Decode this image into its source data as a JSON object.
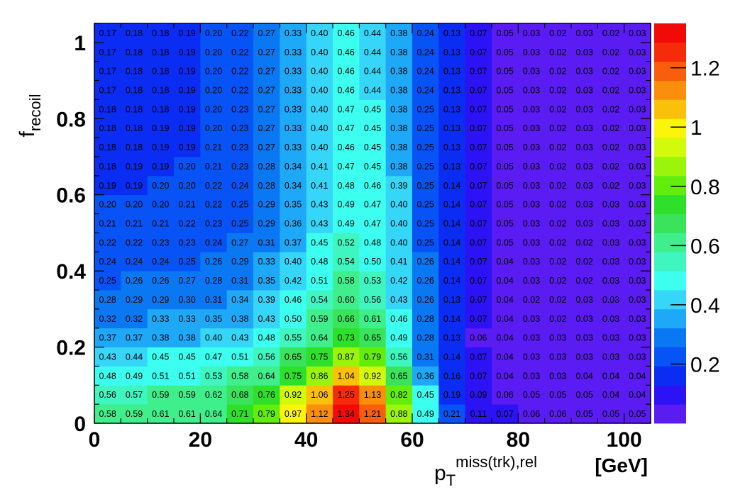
{
  "chart_data": {
    "type": "heatmap",
    "x_axis": {
      "label_main": "p",
      "label_sub": "T",
      "label_sup": "miss(trk),rel",
      "unit": "[GeV]",
      "range": [
        0,
        105
      ],
      "ticks": [
        "0",
        "20",
        "40",
        "60",
        "80",
        "100"
      ],
      "tick_values": [
        0,
        20,
        40,
        60,
        80,
        100
      ],
      "bin_edges": [
        0,
        5,
        10,
        15,
        20,
        25,
        30,
        35,
        40,
        45,
        50,
        55,
        60,
        65,
        70,
        75,
        80,
        85,
        90,
        95,
        100,
        105
      ]
    },
    "y_axis": {
      "label_main": "f",
      "label_sub": "recoil",
      "range": [
        0,
        1.05
      ],
      "ticks": [
        "0",
        "0.2",
        "0.4",
        "0.6",
        "0.8",
        "1"
      ],
      "tick_values": [
        0,
        0.2,
        0.4,
        0.6,
        0.8,
        1.0
      ],
      "bin_edges": [
        0,
        0.05,
        0.1,
        0.15,
        0.2,
        0.25,
        0.3,
        0.35,
        0.4,
        0.45,
        0.5,
        0.55,
        0.6,
        0.65,
        0.7,
        0.75,
        0.8,
        0.85,
        0.9,
        0.95,
        1.0,
        1.05
      ]
    },
    "z_axis": {
      "range": [
        0,
        1.35
      ],
      "ticks": [
        "0.2",
        "0.4",
        "0.6",
        "0.8",
        "1",
        "1.2"
      ],
      "tick_values": [
        0.2,
        0.4,
        0.6,
        0.8,
        1.0,
        1.2
      ],
      "palette": [
        "#5a1cf2",
        "#2b13f5",
        "#0a2cf3",
        "#0853f5",
        "#0a78f3",
        "#1ea8f8",
        "#35d6f8",
        "#3cfff0",
        "#3ff6c0",
        "#3fef8c",
        "#39e45c",
        "#2ee02a",
        "#62ee0a",
        "#9af50a",
        "#d3fa0b",
        "#fbf40b",
        "#fbc10a",
        "#fb8e0a",
        "#f95e0a",
        "#f62b09",
        "#f20a09"
      ]
    },
    "values": [
      [
        "0.58",
        "0.59",
        "0.61",
        "0.61",
        "0.64",
        "0.71",
        "0.79",
        "0.97",
        "1.12",
        "1.34",
        "1.21",
        "0.88",
        "0.49",
        "0.21",
        "0.11",
        "0.07",
        "0.06",
        "0.06",
        "0.05",
        "0.05",
        "0.05"
      ],
      [
        "0.56",
        "0.57",
        "0.59",
        "0.59",
        "0.62",
        "0.68",
        "0.76",
        "0.92",
        "1.06",
        "1.25",
        "1.13",
        "0.82",
        "0.45",
        "0.19",
        "0.09",
        "0.06",
        "0.05",
        "0.05",
        "0.05",
        "0.04",
        "0.04"
      ],
      [
        "0.48",
        "0.49",
        "0.51",
        "0.51",
        "0.53",
        "0.58",
        "0.64",
        "0.75",
        "0.86",
        "1.04",
        "0.92",
        "0.65",
        "0.36",
        "0.16",
        "0.07",
        "0.04",
        "0.03",
        "0.03",
        "0.04",
        "0.04",
        "0.04"
      ],
      [
        "0.43",
        "0.44",
        "0.45",
        "0.45",
        "0.47",
        "0.51",
        "0.56",
        "0.65",
        "0.75",
        "0.87",
        "0.79",
        "0.56",
        "0.31",
        "0.14",
        "0.07",
        "0.04",
        "0.03",
        "0.03",
        "0.03",
        "0.03",
        "0.03"
      ],
      [
        "0.37",
        "0.37",
        "0.38",
        "0.38",
        "0.40",
        "0.43",
        "0.48",
        "0.55",
        "0.64",
        "0.73",
        "0.65",
        "0.49",
        "0.28",
        "0.13",
        "0.06",
        "0.04",
        "0.03",
        "0.03",
        "0.03",
        "0.03",
        "0.03"
      ],
      [
        "0.32",
        "0.32",
        "0.33",
        "0.33",
        "0.35",
        "0.38",
        "0.43",
        "0.50",
        "0.59",
        "0.66",
        "0.61",
        "0.46",
        "0.28",
        "0.14",
        "0.07",
        "0.04",
        "0.03",
        "0.02",
        "0.03",
        "0.03",
        "0.03"
      ],
      [
        "0.28",
        "0.29",
        "0.29",
        "0.30",
        "0.31",
        "0.34",
        "0.39",
        "0.46",
        "0.54",
        "0.60",
        "0.56",
        "0.43",
        "0.26",
        "0.13",
        "0.07",
        "0.04",
        "0.02",
        "0.02",
        "0.03",
        "0.03",
        "0.03"
      ],
      [
        "0.25",
        "0.26",
        "0.26",
        "0.27",
        "0.28",
        "0.31",
        "0.35",
        "0.42",
        "0.51",
        "0.58",
        "0.53",
        "0.42",
        "0.26",
        "0.14",
        "0.07",
        "0.04",
        "0.03",
        "0.02",
        "0.02",
        "0.03",
        "0.03"
      ],
      [
        "0.24",
        "0.24",
        "0.24",
        "0.25",
        "0.26",
        "0.29",
        "0.33",
        "0.40",
        "0.48",
        "0.54",
        "0.50",
        "0.41",
        "0.26",
        "0.14",
        "0.07",
        "0.04",
        "0.03",
        "0.02",
        "0.02",
        "0.03",
        "0.03"
      ],
      [
        "0.22",
        "0.22",
        "0.23",
        "0.23",
        "0.24",
        "0.27",
        "0.31",
        "0.37",
        "0.45",
        "0.52",
        "0.48",
        "0.40",
        "0.25",
        "0.14",
        "0.07",
        "0.05",
        "0.03",
        "0.02",
        "0.02",
        "0.03",
        "0.03"
      ],
      [
        "0.21",
        "0.21",
        "0.21",
        "0.22",
        "0.23",
        "0.25",
        "0.29",
        "0.36",
        "0.43",
        "0.49",
        "0.47",
        "0.40",
        "0.25",
        "0.14",
        "0.07",
        "0.05",
        "0.03",
        "0.02",
        "0.03",
        "0.03",
        "0.03"
      ],
      [
        "0.20",
        "0.20",
        "0.20",
        "0.21",
        "0.22",
        "0.25",
        "0.29",
        "0.35",
        "0.43",
        "0.49",
        "0.47",
        "0.40",
        "0.25",
        "0.14",
        "0.07",
        "0.05",
        "0.03",
        "0.02",
        "0.03",
        "0.03",
        "0.03"
      ],
      [
        "0.19",
        "0.19",
        "0.20",
        "0.20",
        "0.22",
        "0.24",
        "0.28",
        "0.34",
        "0.41",
        "0.48",
        "0.46",
        "0.39",
        "0.25",
        "0.14",
        "0.07",
        "0.05",
        "0.03",
        "0.02",
        "0.03",
        "0.02",
        "0.03"
      ],
      [
        "0.18",
        "0.19",
        "0.19",
        "0.20",
        "0.21",
        "0.23",
        "0.28",
        "0.34",
        "0.41",
        "0.47",
        "0.45",
        "0.38",
        "0.25",
        "0.13",
        "0.07",
        "0.05",
        "0.03",
        "0.02",
        "0.03",
        "0.02",
        "0.03"
      ],
      [
        "0.18",
        "0.18",
        "0.19",
        "0.19",
        "0.21",
        "0.23",
        "0.27",
        "0.33",
        "0.40",
        "0.46",
        "0.45",
        "0.38",
        "0.25",
        "0.13",
        "0.07",
        "0.05",
        "0.03",
        "0.02",
        "0.03",
        "0.02",
        "0.03"
      ],
      [
        "0.18",
        "0.18",
        "0.19",
        "0.19",
        "0.20",
        "0.23",
        "0.27",
        "0.33",
        "0.40",
        "0.47",
        "0.45",
        "0.38",
        "0.25",
        "0.13",
        "0.07",
        "0.05",
        "0.03",
        "0.02",
        "0.03",
        "0.02",
        "0.03"
      ],
      [
        "0.18",
        "0.18",
        "0.18",
        "0.19",
        "0.20",
        "0.23",
        "0.27",
        "0.33",
        "0.40",
        "0.47",
        "0.45",
        "0.38",
        "0.25",
        "0.13",
        "0.07",
        "0.05",
        "0.03",
        "0.02",
        "0.03",
        "0.02",
        "0.03"
      ],
      [
        "0.17",
        "0.18",
        "0.18",
        "0.19",
        "0.20",
        "0.22",
        "0.27",
        "0.33",
        "0.40",
        "0.46",
        "0.44",
        "0.38",
        "0.24",
        "0.13",
        "0.07",
        "0.05",
        "0.03",
        "0.02",
        "0.03",
        "0.02",
        "0.03"
      ],
      [
        "0.17",
        "0.18",
        "0.18",
        "0.19",
        "0.20",
        "0.22",
        "0.27",
        "0.33",
        "0.40",
        "0.46",
        "0.44",
        "0.38",
        "0.24",
        "0.13",
        "0.07",
        "0.05",
        "0.03",
        "0.02",
        "0.03",
        "0.02",
        "0.03"
      ],
      [
        "0.17",
        "0.18",
        "0.18",
        "0.19",
        "0.20",
        "0.22",
        "0.27",
        "0.33",
        "0.40",
        "0.46",
        "0.44",
        "0.38",
        "0.24",
        "0.13",
        "0.07",
        "0.05",
        "0.03",
        "0.02",
        "0.03",
        "0.02",
        "0.03"
      ],
      [
        "0.17",
        "0.18",
        "0.18",
        "0.19",
        "0.20",
        "0.22",
        "0.27",
        "0.33",
        "0.40",
        "0.46",
        "0.44",
        "0.38",
        "0.24",
        "0.13",
        "0.07",
        "0.05",
        "0.03",
        "0.02",
        "0.03",
        "0.02",
        "0.03"
      ]
    ],
    "grid": false,
    "legend": "right color bar"
  }
}
